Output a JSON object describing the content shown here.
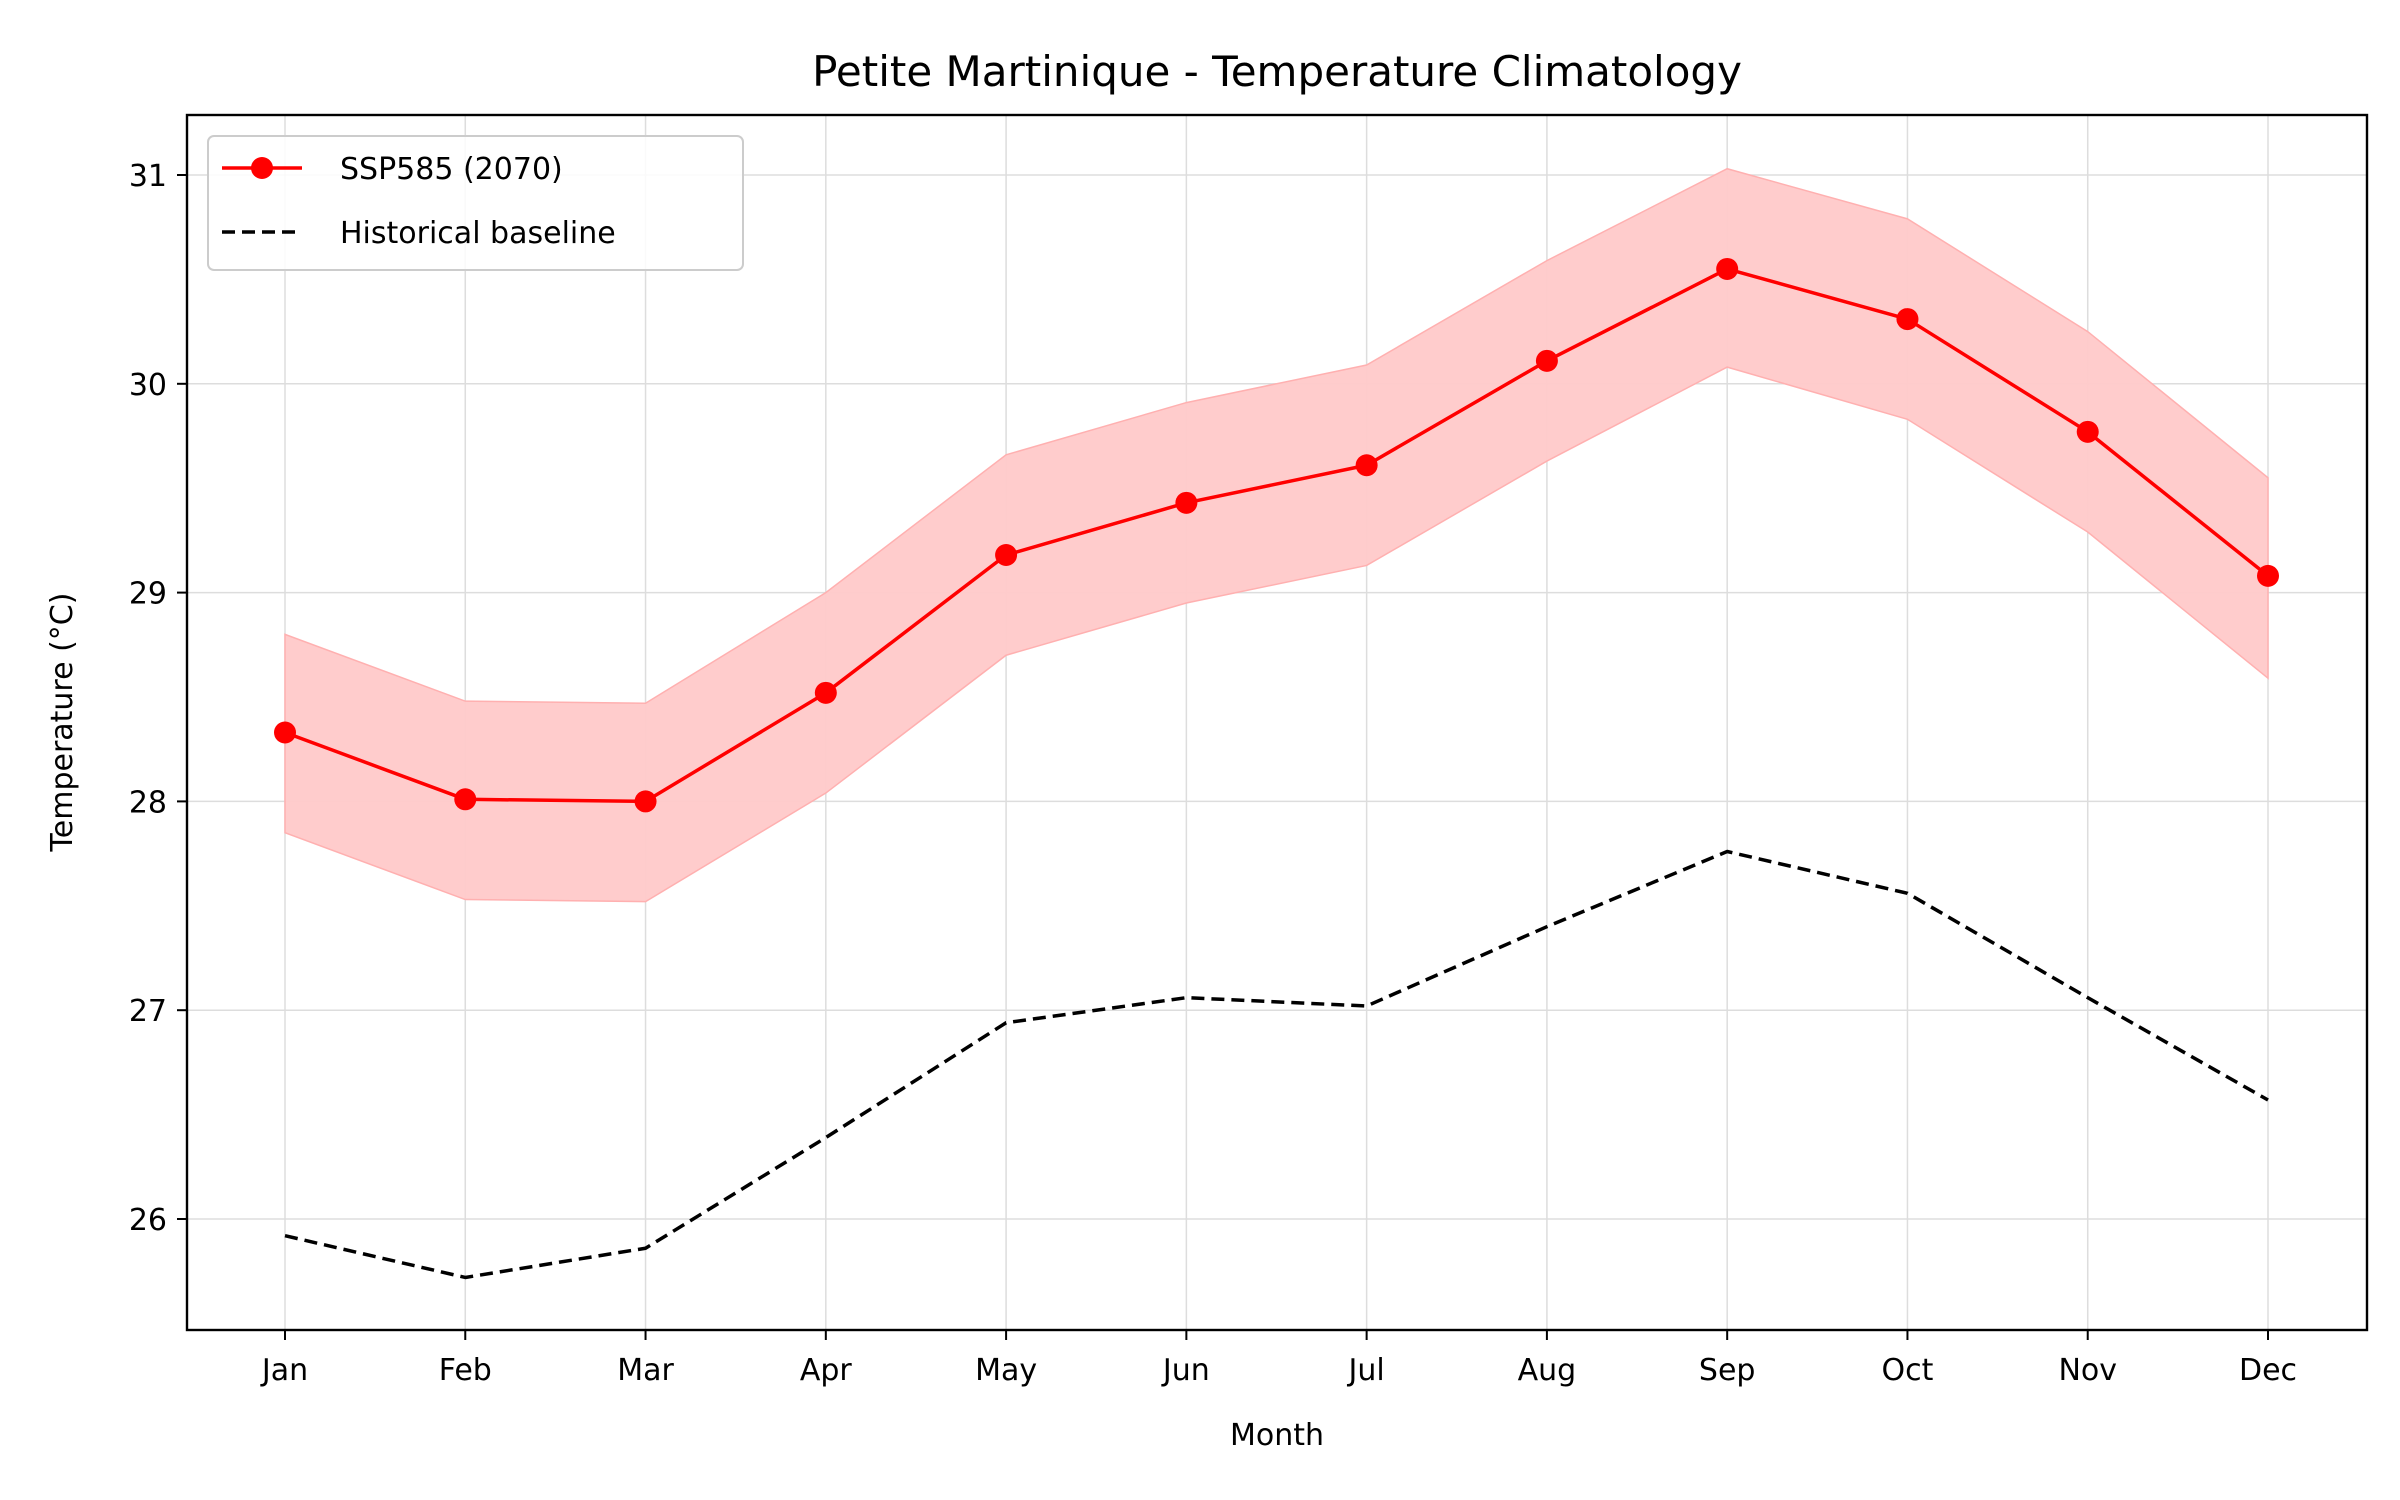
{
  "chart_data": {
    "type": "line",
    "title": "Petite Martinique - Temperature Climatology",
    "xlabel": "Month",
    "ylabel": "Temperature (°C)",
    "categories": [
      "Jan",
      "Feb",
      "Mar",
      "Apr",
      "May",
      "Jun",
      "Jul",
      "Aug",
      "Sep",
      "Oct",
      "Nov",
      "Dec"
    ],
    "ylim": [
      25.45,
      31.3
    ],
    "yticks": [
      26,
      27,
      28,
      29,
      30,
      31
    ],
    "grid": true,
    "legend_position": "top-left",
    "series": [
      {
        "name": "SSP585 (2070)",
        "style": "solid-with-markers",
        "color": "#ff0000",
        "values": [
          28.33,
          28.01,
          28.0,
          28.52,
          29.18,
          29.43,
          29.61,
          30.11,
          30.55,
          30.31,
          29.77,
          29.08
        ],
        "band_upper": [
          28.8,
          28.48,
          28.47,
          29.0,
          29.66,
          29.91,
          30.09,
          30.59,
          31.03,
          30.79,
          30.25,
          29.55
        ],
        "band_lower": [
          27.85,
          27.53,
          27.52,
          28.04,
          28.7,
          28.95,
          29.13,
          29.63,
          30.08,
          29.83,
          29.29,
          28.59
        ],
        "band_color": "#ffc9c9"
      },
      {
        "name": "Historical baseline",
        "style": "dashed",
        "color": "#000000",
        "values": [
          25.92,
          25.72,
          25.86,
          26.39,
          26.94,
          27.06,
          27.02,
          27.4,
          27.76,
          27.56,
          27.06,
          26.57
        ]
      }
    ]
  }
}
